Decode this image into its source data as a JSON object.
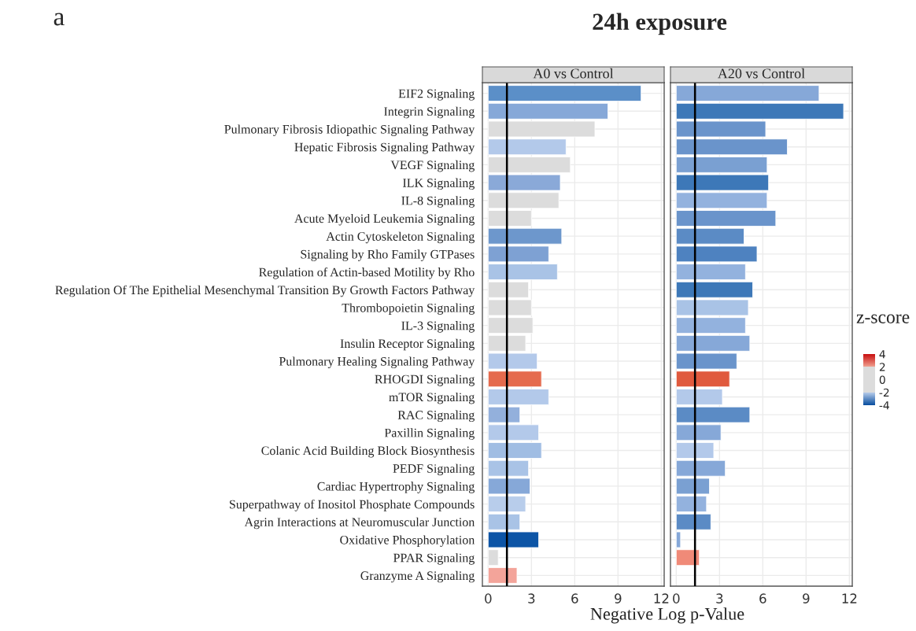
{
  "chart_data": [
    {
      "type": "bar",
      "orientation": "horizontal",
      "title": "A0 vs Control",
      "xlabel": "Negative Log p-Value",
      "annotations": [
        "a",
        "24h exposure"
      ],
      "categories": [
        "EIF2 Signaling",
        "Integrin Signaling",
        "Pulmonary Fibrosis Idiopathic Signaling Pathway",
        "Hepatic Fibrosis Signaling Pathway",
        "VEGF Signaling",
        "ILK Signaling",
        "IL-8 Signaling",
        "Acute Myeloid Leukemia Signaling",
        "Actin Cytoskeleton Signaling",
        "Signaling by Rho Family GTPases",
        "Regulation of Actin-based Motility by Rho",
        "Regulation Of The Epithelial Mesenchymal Transition By Growth Factors Pathway",
        "Thrombopoietin Signaling",
        "IL-3 Signaling",
        "Insulin Receptor Signaling",
        "Pulmonary Healing Signaling Pathway",
        "RHOGDI Signaling",
        "mTOR Signaling",
        "RAC Signaling",
        "Paxillin Signaling",
        "Colanic Acid Building Block Biosynthesis",
        "PEDF Signaling",
        "Cardiac Hypertrophy Signaling",
        "Superpathway of Inositol Phosphate Compounds",
        "Agrin Interactions at Neuromuscular Junction",
        "Oxidative Phosphorylation",
        "PPAR Signaling",
        "Granzyme A Signaling"
      ],
      "values": [
        10.6,
        8.3,
        7.4,
        5.4,
        5.7,
        5.0,
        4.9,
        3.0,
        5.1,
        4.2,
        4.8,
        2.8,
        3.0,
        3.1,
        2.6,
        3.4,
        3.7,
        4.2,
        2.2,
        3.5,
        3.7,
        2.8,
        2.9,
        2.6,
        2.2,
        3.5,
        0.7,
        2.0
      ],
      "colors": [
        "#5b8fc8",
        "#86a8d8",
        "#dcdcdc",
        "#b3c9ea",
        "#dcdcdc",
        "#8aa9d8",
        "#dcdcdc",
        "#dcdcdc",
        "#6d97cc",
        "#7ea1d3",
        "#a9c3e6",
        "#dcdcdc",
        "#dcdcdc",
        "#dcdcdc",
        "#dcdcdc",
        "#b3c9ea",
        "#e56b4e",
        "#b3c9ea",
        "#93b0dc",
        "#b3c9ea",
        "#a0bde3",
        "#a9c3e6",
        "#86a8d8",
        "#b8cdeb",
        "#a9c3e6",
        "#0d55a6",
        "#dcdcdc",
        "#f3a49a"
      ],
      "xlim": [
        -0.4,
        12.2
      ],
      "xticks": [
        0,
        3,
        6,
        9,
        12
      ],
      "grid": true,
      "ref_lines": [
        {
          "axis": "x",
          "value": 1.3,
          "color": "#000000"
        }
      ]
    },
    {
      "type": "bar",
      "orientation": "horizontal",
      "title": "A20 vs Control",
      "tick_labels": "x",
      "clabel": "z-score",
      "clim": [
        -4,
        4
      ],
      "cticks": [
        -4,
        -2,
        0,
        2,
        4
      ],
      "categories": [
        null,
        null,
        null,
        null,
        null,
        null,
        null,
        null,
        null,
        null,
        null,
        null,
        null,
        null,
        null,
        null,
        null,
        null,
        null,
        null,
        null,
        null,
        null,
        null,
        null,
        null,
        null,
        null
      ],
      "values": [
        9.9,
        11.6,
        6.2,
        7.7,
        6.3,
        6.4,
        6.3,
        6.9,
        4.7,
        5.6,
        4.8,
        5.3,
        5.0,
        4.8,
        5.1,
        4.2,
        3.7,
        3.2,
        5.1,
        3.1,
        2.6,
        3.4,
        2.3,
        2.1,
        2.4,
        0.3,
        1.6,
        null
      ],
      "colors": [
        "#86a8d8",
        "#3d78b8",
        "#6a94cb",
        "#6a94cb",
        "#7aa0d2",
        "#3d78b8",
        "#93b2de",
        "#6a94cb",
        "#5b8bc5",
        "#4e82c0",
        "#93b2de",
        "#3d78b8",
        "#a9c3e6",
        "#93b2de",
        "#86a8d8",
        "#6a94cb",
        "#e05a3e",
        "#b3c9ea",
        "#5b8bc5",
        "#86a8d8",
        "#b3c9ea",
        "#86a8d8",
        "#7aa0d2",
        "#93b2de",
        "#5b8bc5",
        "#86a8d8",
        "#f08a78",
        null
      ],
      "xlim": [
        -0.4,
        12.2
      ],
      "xticks": [
        0,
        3,
        6,
        9,
        12
      ],
      "grid": true,
      "ref_lines": [
        {
          "axis": "x",
          "value": 1.3,
          "color": "#000000"
        }
      ]
    }
  ]
}
